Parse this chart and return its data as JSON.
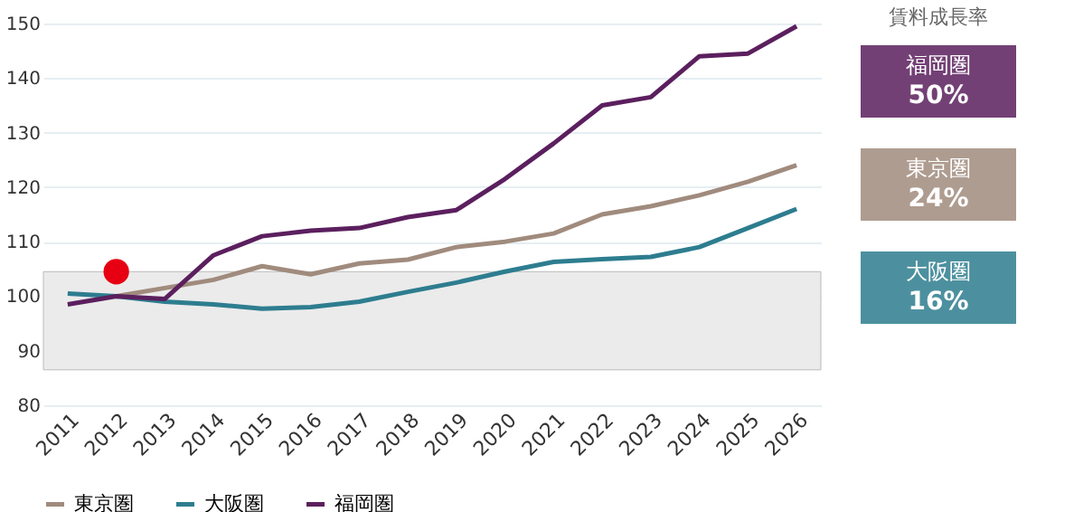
{
  "chart_data": {
    "type": "line",
    "categories": [
      "2011",
      "2012",
      "2013",
      "2014",
      "2015",
      "2016",
      "2017",
      "2018",
      "2019",
      "2020",
      "2021",
      "2022",
      "2023",
      "2024",
      "2025",
      "2026"
    ],
    "series": [
      {
        "name": "東京圏",
        "color": "#a08b7d",
        "values": [
          null,
          100,
          101.5,
          103,
          105.5,
          104,
          106,
          106.7,
          109,
          110,
          111.5,
          115,
          116.5,
          118.5,
          121,
          124
        ]
      },
      {
        "name": "大阪圏",
        "color": "#2d7d8f",
        "values": [
          100.5,
          100,
          99,
          98.5,
          97.7,
          98,
          99,
          100.8,
          102.5,
          104.5,
          106.3,
          106.8,
          107.2,
          109,
          112.5,
          116
        ]
      },
      {
        "name": "福岡圏",
        "color": "#5b1f5e",
        "values": [
          98.5,
          100,
          99.5,
          107.5,
          111,
          112,
          112.5,
          114.5,
          115.8,
          121.5,
          128,
          135,
          136.5,
          144,
          144.5,
          149.5
        ]
      },
      {
        "type": "scatter",
        "color": "#e60012",
        "values": [
          null,
          104.5,
          null,
          null,
          null,
          null,
          null,
          null,
          null,
          null,
          null,
          null,
          null,
          null,
          null,
          null
        ]
      }
    ],
    "ylim": [
      80,
      150
    ],
    "yticks": [
      80,
      90,
      100,
      110,
      120,
      130,
      140,
      150
    ],
    "grid": "y",
    "legend": "bottom",
    "bands": [
      {
        "axis": "y",
        "from": 86.5,
        "to": 104.5,
        "color": "#ebebeb"
      }
    ],
    "annotations": [
      "賃料成長率",
      "福岡圏 50%",
      "東京圏 24%",
      "大阪圏 16%"
    ]
  }
}
